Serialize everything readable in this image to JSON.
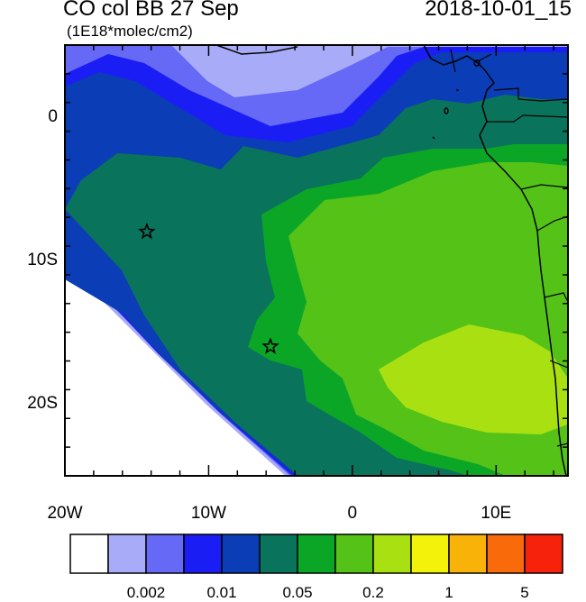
{
  "title": "CO col BB 27 Sep",
  "units": "(1E18*molec/cm2)",
  "timestamp": "2018-10-01_15",
  "map": {
    "lon_range": [
      -20,
      15
    ],
    "lat_range": [
      -25,
      5
    ],
    "lat_ticks": [
      {
        "value": 0,
        "label": "0"
      },
      {
        "value": -10,
        "label": "10S"
      },
      {
        "value": -20,
        "label": "20S"
      }
    ],
    "lon_ticks": [
      {
        "value": -20,
        "label": "20W"
      },
      {
        "value": -10,
        "label": "10W"
      },
      {
        "value": 0,
        "label": "0"
      },
      {
        "value": 10,
        "label": "10E"
      }
    ],
    "markers": [
      {
        "type": "star",
        "lon": -14.3,
        "lat": -8.0
      },
      {
        "type": "star",
        "lon": -5.7,
        "lat": -16.0
      }
    ]
  },
  "colorbar": {
    "colors": [
      "#ffffff",
      "#a8acf8",
      "#6668f6",
      "#1a1ef4",
      "#0a3db6",
      "#0a735c",
      "#0ca626",
      "#55c218",
      "#a9e012",
      "#f2f20a",
      "#f8b208",
      "#f96a0a",
      "#f6220c"
    ],
    "labels": [
      {
        "boundary": 2,
        "text": "0.002"
      },
      {
        "boundary": 4,
        "text": "0.01"
      },
      {
        "boundary": 6,
        "text": "0.05"
      },
      {
        "boundary": 8,
        "text": "0.2"
      },
      {
        "boundary": 10,
        "text": "1"
      },
      {
        "boundary": 12,
        "text": "5"
      }
    ]
  }
}
